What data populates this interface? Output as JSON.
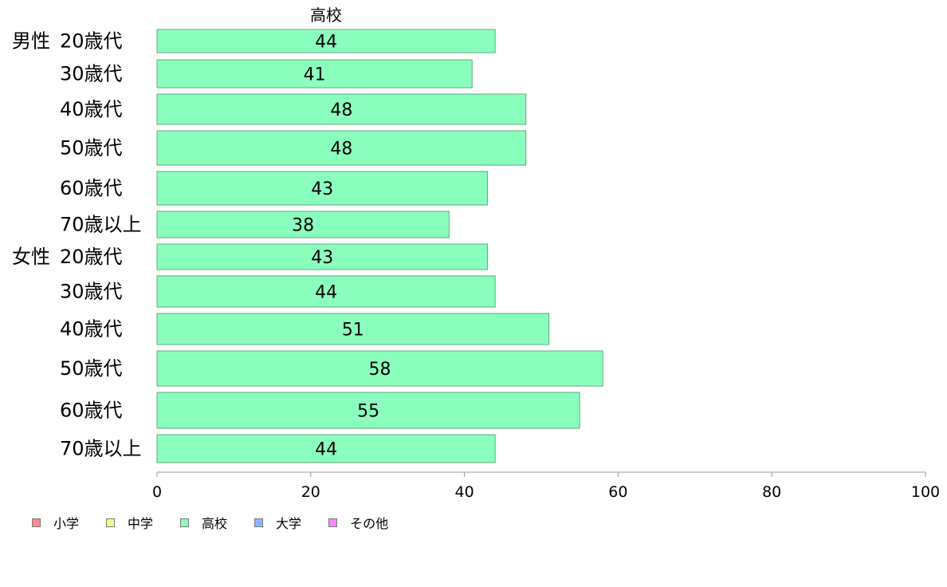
{
  "chart_data": {
    "type": "bar",
    "orientation": "horizontal",
    "title": "高校",
    "xlim": [
      0,
      100
    ],
    "xticks": [
      "0",
      "20",
      "40",
      "60",
      "80",
      "100"
    ],
    "groups": [
      "男性",
      "女性"
    ],
    "categories": [
      {
        "group": "男性",
        "label": "20歳代",
        "value": 44
      },
      {
        "group": "",
        "label": "30歳代",
        "value": 41
      },
      {
        "group": "",
        "label": "40歳代",
        "value": 48
      },
      {
        "group": "",
        "label": "50歳代",
        "value": 48
      },
      {
        "group": "",
        "label": "60歳代",
        "value": 43
      },
      {
        "group": "",
        "label": "70歳以上",
        "value": 38
      },
      {
        "group": "女性",
        "label": "20歳代",
        "value": 43
      },
      {
        "group": "",
        "label": "30歳代",
        "value": 44
      },
      {
        "group": "",
        "label": "40歳代",
        "value": 51
      },
      {
        "group": "",
        "label": "50歳代",
        "value": 58
      },
      {
        "group": "",
        "label": "60歳代",
        "value": 55
      },
      {
        "group": "",
        "label": "70歳以上",
        "value": 44
      }
    ],
    "bar_color": "#8affbd",
    "bar_stroke": "#5faa80",
    "grid": false,
    "legend_position": "bottom-left",
    "legend": [
      {
        "label": "小学",
        "color": "#fb8a8a"
      },
      {
        "label": "中学",
        "color": "#eeff8a"
      },
      {
        "label": "高校",
        "color": "#8affbd"
      },
      {
        "label": "大学",
        "color": "#8ab6ff"
      },
      {
        "label": "その他",
        "color": "#f58aff"
      }
    ]
  }
}
